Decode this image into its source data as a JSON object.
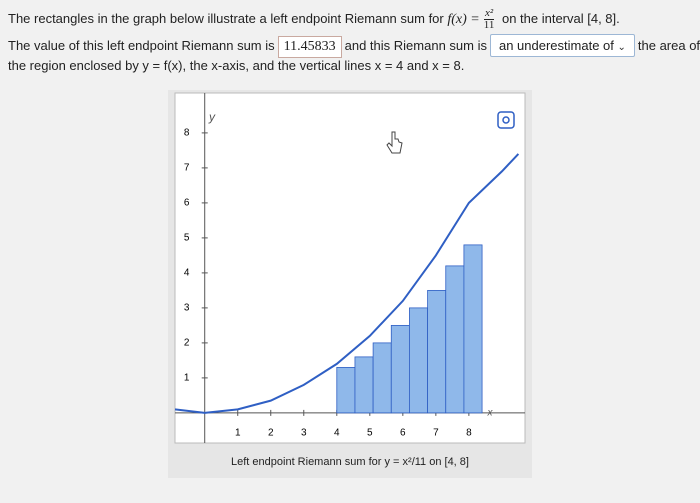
{
  "question": {
    "line1_text": "The rectangles in the graph below illustrate a left endpoint Riemann sum for",
    "function": "f(x) =",
    "numerator": "x²",
    "denominator": "11",
    "line1_end": "on the interval [4, 8].",
    "line2_text": "The value of this left endpoint Riemann sum is",
    "answer": "11.45833",
    "line2_mid": "and this Riemann sum is",
    "dropdown": "an underestimate of",
    "line2_end": "the area of",
    "line3_text": "the region enclosed by y = f(x), the x-axis, and the vertical lines x = 4 and x = 8."
  },
  "graph": {
    "type": "bar",
    "x_axis_label": "x",
    "y_axis_label": "y",
    "caption": "Left endpoint Riemann sum for y = x²/11 on [4, 8]",
    "xlim": [
      -0.9,
      9.7
    ],
    "ylim": [
      -0.86,
      9.14
    ],
    "xticks": [
      1,
      2,
      3,
      4,
      5,
      6,
      7,
      8
    ],
    "yticks": [
      1,
      2,
      3,
      4,
      5,
      6,
      7,
      8
    ],
    "bins": [
      4,
      4.55,
      5.1,
      5.65,
      6.2,
      6.75,
      7.3,
      7.85,
      8.4
    ],
    "values": [
      1.3,
      1.6,
      2.0,
      2.5,
      3.0,
      3.5,
      4.2,
      4.8
    ],
    "color": "#8fb8ea",
    "curve": {
      "color": "#2f5fc4",
      "x": [
        -0.9,
        0,
        1,
        2,
        3,
        4,
        5,
        6,
        7,
        8,
        9,
        9.5
      ],
      "y": [
        0.1,
        0,
        0.1,
        0.35,
        0.8,
        1.4,
        2.2,
        3.2,
        4.5,
        6.0,
        6.9,
        7.4
      ]
    }
  }
}
